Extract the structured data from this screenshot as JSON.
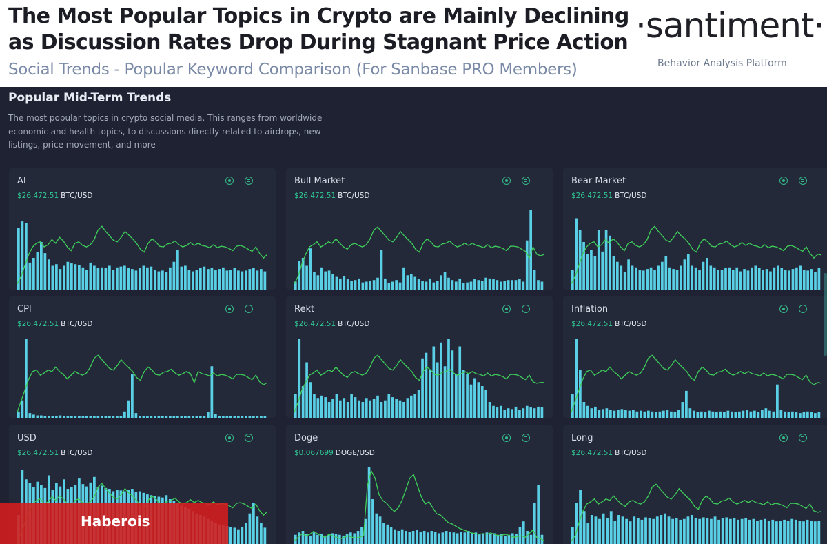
{
  "header": {
    "title_line1": "The Most Popular Topics in Crypto are Mainly Declining",
    "title_line2": "as Discussion Rates Drop During Stagnant Price Action",
    "subtitle": "Social Trends - Popular Keyword Comparison (For Sanbase PRO Members)",
    "logo": "·santiment·",
    "tagline": "Behavior Analysis Platform"
  },
  "panel": {
    "title": "Popular Mid-Term Trends",
    "description": "The most popular topics in crypto social media. This ranges from worldwide economic and health topics, to discussions directly related to airdrops, new listings, price movement, and more"
  },
  "colors": {
    "bar": "#5ad0e6",
    "line": "#3ecf5a",
    "price": "#2fc794",
    "panel_bg": "#1e2232",
    "card_bg": "#242939",
    "banner": "#d61c1c"
  },
  "cards": [
    {
      "keyword": "AI",
      "price_value": "$26,472.51",
      "price_pair": "BTC/USD",
      "icons": [
        "view-icon",
        "menu-icon"
      ],
      "volume": [
        0.78,
        0.86,
        0.84,
        0.34,
        0.4,
        0.47,
        0.6,
        0.46,
        0.38,
        0.3,
        0.32,
        0.26,
        0.3,
        0.35,
        0.33,
        0.32,
        0.31,
        0.28,
        0.25,
        0.34,
        0.3,
        0.27,
        0.28,
        0.27,
        0.3,
        0.25,
        0.28,
        0.29,
        0.3,
        0.27,
        0.26,
        0.24,
        0.27,
        0.3,
        0.28,
        0.29,
        0.25,
        0.23,
        0.24,
        0.22,
        0.28,
        0.35,
        0.5,
        0.29,
        0.3,
        0.25,
        0.23,
        0.25,
        0.27,
        0.29,
        0.26,
        0.27,
        0.25,
        0.26,
        0.28,
        0.24,
        0.25,
        0.27,
        0.24,
        0.23,
        0.24,
        0.26,
        0.27,
        0.24,
        0.26,
        0.23
      ],
      "trend": [
        0.05,
        0.15,
        0.3,
        0.45,
        0.55,
        0.6,
        0.62,
        0.55,
        0.58,
        0.65,
        0.6,
        0.68,
        0.63,
        0.55,
        0.5,
        0.6,
        0.62,
        0.57,
        0.55,
        0.58,
        0.65,
        0.78,
        0.83,
        0.76,
        0.7,
        0.64,
        0.62,
        0.68,
        0.76,
        0.71,
        0.66,
        0.6,
        0.52,
        0.48,
        0.6,
        0.66,
        0.62,
        0.56,
        0.55,
        0.59,
        0.6,
        0.63,
        0.58,
        0.55,
        0.57,
        0.61,
        0.57,
        0.6,
        0.57,
        0.56,
        0.54,
        0.58,
        0.54,
        0.56,
        0.55,
        0.53,
        0.5,
        0.56,
        0.57,
        0.55,
        0.52,
        0.49,
        0.55,
        0.46,
        0.4,
        0.45
      ]
    },
    {
      "keyword": "Bull Market",
      "price_value": "$26,472.51",
      "price_pair": "BTC/USD",
      "icons": [
        "view-icon",
        "menu-icon"
      ],
      "volume": [
        0.1,
        0.36,
        0.4,
        0.3,
        0.52,
        0.22,
        0.18,
        0.28,
        0.23,
        0.24,
        0.2,
        0.16,
        0.14,
        0.17,
        0.13,
        0.11,
        0.12,
        0.14,
        0.09,
        0.1,
        0.11,
        0.12,
        0.15,
        0.5,
        0.14,
        0.08,
        0.1,
        0.12,
        0.09,
        0.28,
        0.18,
        0.2,
        0.16,
        0.13,
        0.11,
        0.1,
        0.14,
        0.09,
        0.11,
        0.18,
        0.22,
        0.15,
        0.12,
        0.1,
        0.14,
        0.08,
        0.09,
        0.1,
        0.13,
        0.12,
        0.11,
        0.15,
        0.14,
        0.13,
        0.12,
        0.1,
        0.11,
        0.12,
        0.12,
        0.12,
        0.13,
        0.1,
        0.62,
        1.0,
        0.25,
        0.12,
        0.1
      ],
      "trend": [
        0.05,
        0.15,
        0.32,
        0.45,
        0.55,
        0.58,
        0.62,
        0.55,
        0.58,
        0.62,
        0.6,
        0.66,
        0.6,
        0.55,
        0.52,
        0.58,
        0.6,
        0.57,
        0.55,
        0.58,
        0.66,
        0.78,
        0.82,
        0.76,
        0.7,
        0.64,
        0.62,
        0.68,
        0.76,
        0.7,
        0.65,
        0.6,
        0.52,
        0.48,
        0.6,
        0.66,
        0.62,
        0.56,
        0.55,
        0.59,
        0.6,
        0.63,
        0.58,
        0.55,
        0.57,
        0.6,
        0.57,
        0.6,
        0.57,
        0.56,
        0.54,
        0.58,
        0.54,
        0.56,
        0.55,
        0.53,
        0.5,
        0.56,
        0.56,
        0.55,
        0.52,
        0.49,
        0.4,
        0.55,
        0.45,
        0.43,
        0.45
      ]
    },
    {
      "keyword": "Bear Market",
      "price_value": "$26,472.51",
      "price_pair": "BTC/USD",
      "icons": [
        "view-icon",
        "menu-icon"
      ],
      "volume": [
        0.25,
        0.9,
        0.75,
        0.6,
        0.45,
        0.5,
        0.42,
        0.75,
        0.48,
        0.75,
        0.68,
        0.42,
        0.35,
        0.3,
        0.22,
        0.38,
        0.3,
        0.28,
        0.25,
        0.24,
        0.26,
        0.28,
        0.25,
        0.3,
        0.35,
        0.42,
        0.28,
        0.26,
        0.25,
        0.3,
        0.38,
        0.45,
        0.3,
        0.28,
        0.25,
        0.35,
        0.4,
        0.3,
        0.28,
        0.25,
        0.25,
        0.27,
        0.28,
        0.25,
        0.28,
        0.23,
        0.26,
        0.24,
        0.28,
        0.3,
        0.27,
        0.25,
        0.26,
        0.23,
        0.28,
        0.3,
        0.27,
        0.25,
        0.24,
        0.26,
        0.28,
        0.3,
        0.25,
        0.24,
        0.26,
        0.22,
        0.27
      ],
      "trend": [
        0.05,
        0.15,
        0.3,
        0.45,
        0.55,
        0.6,
        0.62,
        0.55,
        0.58,
        0.65,
        0.6,
        0.66,
        0.62,
        0.55,
        0.5,
        0.6,
        0.62,
        0.57,
        0.55,
        0.58,
        0.65,
        0.78,
        0.83,
        0.76,
        0.7,
        0.64,
        0.62,
        0.68,
        0.76,
        0.7,
        0.66,
        0.6,
        0.52,
        0.48,
        0.6,
        0.66,
        0.62,
        0.56,
        0.55,
        0.59,
        0.6,
        0.63,
        0.58,
        0.55,
        0.57,
        0.61,
        0.57,
        0.6,
        0.57,
        0.56,
        0.54,
        0.58,
        0.54,
        0.56,
        0.55,
        0.53,
        0.5,
        0.56,
        0.57,
        0.55,
        0.52,
        0.49,
        0.55,
        0.46,
        0.4,
        0.45,
        0.44
      ]
    },
    {
      "keyword": "CPI",
      "price_value": "$26,472.51",
      "price_pair": "BTC/USD",
      "icons": [
        "view-icon",
        "menu-icon"
      ],
      "volume": [
        0.08,
        0.22,
        1.0,
        0.06,
        0.04,
        0.03,
        0.03,
        0.02,
        0.02,
        0.02,
        0.02,
        0.03,
        0.02,
        0.02,
        0.02,
        0.02,
        0.02,
        0.02,
        0.02,
        0.02,
        0.02,
        0.02,
        0.02,
        0.02,
        0.02,
        0.02,
        0.02,
        0.02,
        0.08,
        0.22,
        0.55,
        0.06,
        0.02,
        0.02,
        0.02,
        0.02,
        0.02,
        0.02,
        0.02,
        0.02,
        0.02,
        0.02,
        0.02,
        0.02,
        0.02,
        0.02,
        0.02,
        0.02,
        0.02,
        0.02,
        0.07,
        0.65,
        0.05,
        0.02,
        0.02,
        0.02,
        0.02,
        0.02,
        0.02,
        0.02,
        0.02,
        0.02,
        0.02,
        0.02,
        0.02,
        0.02
      ],
      "trend": [
        0.05,
        0.2,
        0.35,
        0.5,
        0.6,
        0.62,
        0.55,
        0.58,
        0.62,
        0.6,
        0.66,
        0.6,
        0.56,
        0.5,
        0.55,
        0.6,
        0.57,
        0.55,
        0.58,
        0.66,
        0.78,
        0.82,
        0.76,
        0.7,
        0.64,
        0.62,
        0.68,
        0.76,
        0.7,
        0.65,
        0.6,
        0.52,
        0.48,
        0.6,
        0.66,
        0.62,
        0.56,
        0.55,
        0.59,
        0.6,
        0.63,
        0.58,
        0.55,
        0.57,
        0.6,
        0.57,
        0.45,
        0.6,
        0.57,
        0.56,
        0.54,
        0.58,
        0.54,
        0.56,
        0.55,
        0.53,
        0.5,
        0.56,
        0.56,
        0.55,
        0.52,
        0.49,
        0.55,
        0.46,
        0.42,
        0.45
      ]
    },
    {
      "keyword": "Rekt",
      "price_value": "$26,472.51",
      "price_pair": "BTC/USD",
      "icons": [
        "view-icon",
        "menu-icon"
      ],
      "volume": [
        0.3,
        1.0,
        0.4,
        0.7,
        0.45,
        0.3,
        0.25,
        0.28,
        0.26,
        0.2,
        0.24,
        0.3,
        0.22,
        0.25,
        0.2,
        0.3,
        0.26,
        0.22,
        0.2,
        0.25,
        0.22,
        0.24,
        0.28,
        0.2,
        0.22,
        0.3,
        0.26,
        0.24,
        0.22,
        0.2,
        0.25,
        0.28,
        0.3,
        0.35,
        0.75,
        0.82,
        0.6,
        0.9,
        0.7,
        0.95,
        0.65,
        1.0,
        0.85,
        0.55,
        0.9,
        0.6,
        0.55,
        0.42,
        0.5,
        0.45,
        0.4,
        0.35,
        0.2,
        0.15,
        0.13,
        0.15,
        0.1,
        0.12,
        0.11,
        0.14,
        0.1,
        0.12,
        0.15,
        0.13,
        0.12,
        0.14,
        0.13
      ],
      "trend": [
        0.05,
        0.18,
        0.35,
        0.45,
        0.55,
        0.58,
        0.62,
        0.55,
        0.58,
        0.62,
        0.6,
        0.66,
        0.6,
        0.55,
        0.52,
        0.58,
        0.6,
        0.57,
        0.55,
        0.58,
        0.66,
        0.78,
        0.82,
        0.76,
        0.7,
        0.64,
        0.62,
        0.68,
        0.76,
        0.7,
        0.65,
        0.6,
        0.52,
        0.48,
        0.6,
        0.66,
        0.62,
        0.56,
        0.55,
        0.59,
        0.6,
        0.63,
        0.58,
        0.55,
        0.57,
        0.6,
        0.57,
        0.6,
        0.57,
        0.56,
        0.54,
        0.58,
        0.54,
        0.56,
        0.55,
        0.53,
        0.5,
        0.56,
        0.56,
        0.55,
        0.52,
        0.49,
        0.55,
        0.46,
        0.44,
        0.45,
        0.45
      ]
    },
    {
      "keyword": "Inflation",
      "price_value": "$26,472.51",
      "price_pair": "BTC/USD",
      "icons": [
        "view-icon",
        "menu-icon"
      ],
      "volume": [
        0.3,
        1.0,
        0.6,
        0.2,
        0.15,
        0.12,
        0.14,
        0.1,
        0.11,
        0.12,
        0.1,
        0.09,
        0.1,
        0.11,
        0.1,
        0.09,
        0.1,
        0.08,
        0.09,
        0.08,
        0.09,
        0.08,
        0.07,
        0.08,
        0.09,
        0.1,
        0.08,
        0.07,
        0.1,
        0.2,
        0.34,
        0.12,
        0.09,
        0.07,
        0.08,
        0.07,
        0.09,
        0.08,
        0.07,
        0.08,
        0.07,
        0.09,
        0.08,
        0.07,
        0.08,
        0.09,
        0.1,
        0.08,
        0.09,
        0.07,
        0.1,
        0.12,
        0.09,
        0.08,
        0.42,
        0.1,
        0.08,
        0.07,
        0.08,
        0.07,
        0.06,
        0.07,
        0.08,
        0.07,
        0.06,
        0.07
      ],
      "trend": [
        0.05,
        0.2,
        0.35,
        0.5,
        0.6,
        0.62,
        0.55,
        0.58,
        0.62,
        0.6,
        0.66,
        0.6,
        0.56,
        0.5,
        0.55,
        0.6,
        0.57,
        0.55,
        0.58,
        0.66,
        0.78,
        0.82,
        0.76,
        0.7,
        0.64,
        0.62,
        0.68,
        0.76,
        0.7,
        0.65,
        0.6,
        0.52,
        0.48,
        0.6,
        0.66,
        0.62,
        0.56,
        0.55,
        0.59,
        0.6,
        0.63,
        0.58,
        0.55,
        0.57,
        0.6,
        0.57,
        0.6,
        0.57,
        0.56,
        0.54,
        0.58,
        0.54,
        0.56,
        0.55,
        0.53,
        0.5,
        0.56,
        0.56,
        0.55,
        0.52,
        0.49,
        0.55,
        0.46,
        0.42,
        0.45,
        0.44
      ]
    },
    {
      "keyword": "USD",
      "price_value": "$26,472.51",
      "price_pair": "BTC/USD",
      "icons": [
        "view-icon",
        "menu-icon"
      ],
      "volume": [
        0.4,
        0.97,
        0.85,
        0.8,
        0.75,
        0.82,
        0.78,
        0.74,
        0.9,
        0.72,
        0.8,
        0.76,
        0.85,
        0.73,
        0.75,
        0.78,
        0.86,
        0.79,
        0.76,
        0.81,
        0.88,
        0.75,
        0.77,
        0.74,
        0.73,
        0.7,
        0.72,
        0.71,
        0.7,
        0.72,
        0.73,
        0.69,
        0.7,
        0.68,
        0.66,
        0.65,
        0.64,
        0.63,
        0.62,
        0.65,
        0.6,
        0.58,
        0.55,
        0.52,
        0.5,
        0.48,
        0.45,
        0.42,
        0.4,
        0.38,
        0.35,
        0.33,
        0.3,
        0.28,
        0.27,
        0.26,
        0.25,
        0.24,
        0.22,
        0.25,
        0.3,
        0.42,
        0.55,
        0.38,
        0.3,
        0.24
      ],
      "trend": [
        0.05,
        0.15,
        0.3,
        0.45,
        0.55,
        0.6,
        0.62,
        0.55,
        0.58,
        0.65,
        0.6,
        0.66,
        0.62,
        0.55,
        0.5,
        0.6,
        0.62,
        0.57,
        0.55,
        0.58,
        0.65,
        0.78,
        0.83,
        0.76,
        0.7,
        0.64,
        0.62,
        0.68,
        0.76,
        0.7,
        0.66,
        0.6,
        0.52,
        0.48,
        0.6,
        0.66,
        0.62,
        0.56,
        0.55,
        0.59,
        0.6,
        0.63,
        0.58,
        0.55,
        0.57,
        0.61,
        0.57,
        0.6,
        0.57,
        0.56,
        0.54,
        0.58,
        0.54,
        0.56,
        0.55,
        0.53,
        0.5,
        0.56,
        0.57,
        0.55,
        0.52,
        0.49,
        0.55,
        0.46,
        0.4,
        0.45
      ]
    },
    {
      "keyword": "Doge",
      "price_value": "$0.067699",
      "price_pair": "DOGE/USD",
      "icons": [
        "view-icon",
        "menu-icon"
      ],
      "volume": [
        0.15,
        0.18,
        0.2,
        0.16,
        0.14,
        0.18,
        0.15,
        0.16,
        0.14,
        0.15,
        0.17,
        0.16,
        0.15,
        0.14,
        0.16,
        0.18,
        0.17,
        0.2,
        0.25,
        0.35,
        1.0,
        0.6,
        0.42,
        0.38,
        0.3,
        0.28,
        0.25,
        0.22,
        0.2,
        0.22,
        0.2,
        0.19,
        0.2,
        0.21,
        0.19,
        0.2,
        0.18,
        0.2,
        0.19,
        0.17,
        0.18,
        0.2,
        0.19,
        0.18,
        0.17,
        0.19,
        0.18,
        0.2,
        0.17,
        0.18,
        0.16,
        0.17,
        0.18,
        0.16,
        0.17,
        0.15,
        0.16,
        0.14,
        0.15,
        0.17,
        0.16,
        0.25,
        0.32,
        0.2,
        0.15,
        0.55,
        0.78,
        0.15
      ],
      "trend": [
        0.05,
        0.1,
        0.15,
        0.12,
        0.14,
        0.18,
        0.15,
        0.12,
        0.1,
        0.14,
        0.12,
        0.1,
        0.08,
        0.1,
        0.12,
        0.1,
        0.09,
        0.1,
        0.12,
        0.8,
        1.0,
        0.9,
        0.68,
        0.6,
        0.56,
        0.5,
        0.45,
        0.5,
        0.6,
        0.75,
        0.9,
        0.95,
        0.8,
        0.65,
        0.55,
        0.58,
        0.5,
        0.42,
        0.4,
        0.35,
        0.3,
        0.28,
        0.25,
        0.22,
        0.2,
        0.18,
        0.16,
        0.15,
        0.14,
        0.15,
        0.14,
        0.16,
        0.14,
        0.12,
        0.13,
        0.14,
        0.12,
        0.1,
        0.11,
        0.12,
        0.1,
        0.15,
        0.2,
        0.1,
        0.08,
        0.05
      ]
    },
    {
      "keyword": "Long",
      "price_value": "$26,472.51",
      "price_pair": "BTC/USD",
      "icons": [
        "view-icon",
        "menu-icon"
      ],
      "volume": [
        0.25,
        0.55,
        0.72,
        0.45,
        0.3,
        0.4,
        0.38,
        0.35,
        0.42,
        0.36,
        0.45,
        0.33,
        0.4,
        0.38,
        0.35,
        0.32,
        0.38,
        0.36,
        0.34,
        0.37,
        0.36,
        0.35,
        0.38,
        0.4,
        0.42,
        0.38,
        0.35,
        0.36,
        0.34,
        0.35,
        0.38,
        0.4,
        0.36,
        0.35,
        0.37,
        0.36,
        0.35,
        0.38,
        0.34,
        0.36,
        0.37,
        0.35,
        0.36,
        0.34,
        0.35,
        0.36,
        0.34,
        0.35,
        0.33,
        0.34,
        0.35,
        0.33,
        0.34,
        0.32,
        0.33,
        0.34,
        0.33,
        0.35,
        0.34,
        0.33,
        0.32,
        0.34,
        0.33,
        0.32,
        0.33
      ],
      "trend": [
        0.05,
        0.12,
        0.3,
        0.45,
        0.55,
        0.58,
        0.62,
        0.55,
        0.58,
        0.62,
        0.6,
        0.66,
        0.6,
        0.55,
        0.52,
        0.58,
        0.6,
        0.57,
        0.55,
        0.58,
        0.66,
        0.78,
        0.82,
        0.76,
        0.7,
        0.64,
        0.62,
        0.68,
        0.76,
        0.7,
        0.65,
        0.6,
        0.52,
        0.48,
        0.6,
        0.66,
        0.62,
        0.56,
        0.55,
        0.59,
        0.6,
        0.63,
        0.58,
        0.55,
        0.57,
        0.6,
        0.57,
        0.6,
        0.57,
        0.56,
        0.54,
        0.58,
        0.54,
        0.56,
        0.55,
        0.53,
        0.5,
        0.56,
        0.56,
        0.55,
        0.52,
        0.49,
        0.55,
        0.46,
        0.44,
        0.45
      ]
    }
  ],
  "watermark": "Haberois"
}
